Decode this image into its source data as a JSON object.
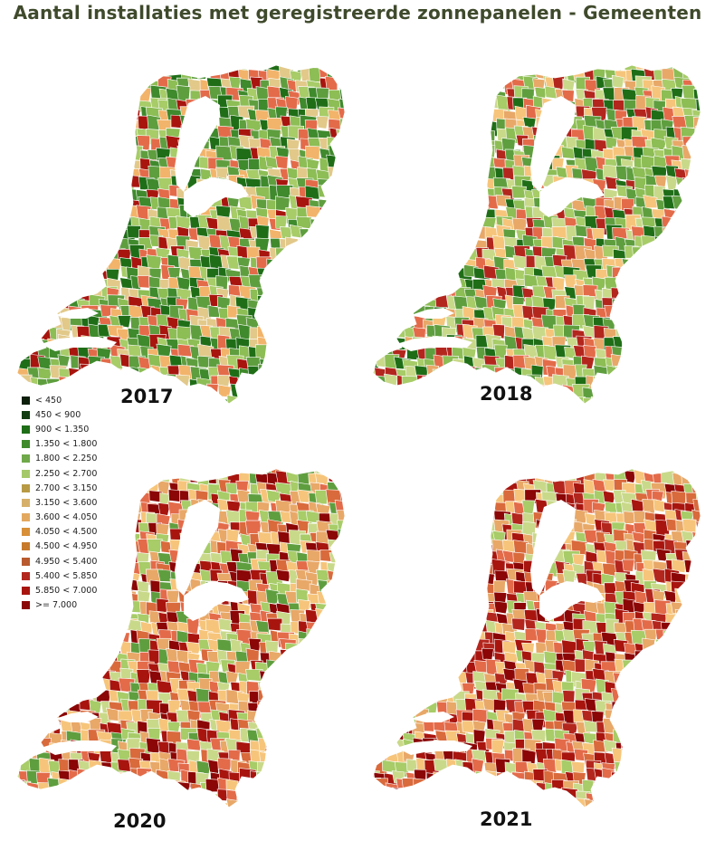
{
  "title": "Aantal installaties met geregistreerde zonnepanelen - Gemeenten",
  "legend": [
    {
      "label": "< 450",
      "color": "#0b1f0b"
    },
    {
      "label": "450 < 900",
      "color": "#123d12"
    },
    {
      "label": "900 < 1.350",
      "color": "#1f6e17"
    },
    {
      "label": "1.350 < 1.800",
      "color": "#3f8a2c"
    },
    {
      "label": "1.800 < 2.250",
      "color": "#6fa94a"
    },
    {
      "label": "2.250 < 2.700",
      "color": "#a5c96a"
    },
    {
      "label": "2.700 < 3.150",
      "color": "#b89a45"
    },
    {
      "label": "3.150 < 3.600",
      "color": "#d6b06a"
    },
    {
      "label": "3.600 < 4.050",
      "color": "#e3a860"
    },
    {
      "label": "4.050 < 4.500",
      "color": "#d78f38"
    },
    {
      "label": "4.500 < 4.950",
      "color": "#c77a2c"
    },
    {
      "label": "4.950 < 5.400",
      "color": "#b85a2e"
    },
    {
      "label": "5.400 < 5.850",
      "color": "#b3261e"
    },
    {
      "label": "5.850 < 7.000",
      "color": "#a8150f"
    },
    {
      "label": ">= 7.000",
      "color": "#8b0606"
    }
  ],
  "maps": [
    {
      "year": "2017",
      "palette": [
        "#5f9e3f",
        "#8dbd55",
        "#a7cc68",
        "#3f8a2c",
        "#1f6e17",
        "#e2c98a",
        "#f2b46a",
        "#e36b4a",
        "#a8150f"
      ]
    },
    {
      "year": "2018",
      "palette": [
        "#8dbd55",
        "#a7cc68",
        "#c9d98a",
        "#f6c57b",
        "#e8a868",
        "#5f9e3f",
        "#e36b4a",
        "#b3261e",
        "#1f6e17"
      ]
    },
    {
      "year": "2020",
      "palette": [
        "#f6c57b",
        "#e8a868",
        "#c9d98a",
        "#a7cc68",
        "#e36b4a",
        "#a8150f",
        "#8b0606",
        "#d96a3c",
        "#5f9e3f"
      ]
    },
    {
      "year": "2021",
      "palette": [
        "#a8150f",
        "#8b0606",
        "#e36b4a",
        "#f6c57b",
        "#e8a868",
        "#d96a3c",
        "#c9d98a",
        "#a7cc68",
        "#b3261e"
      ]
    }
  ]
}
